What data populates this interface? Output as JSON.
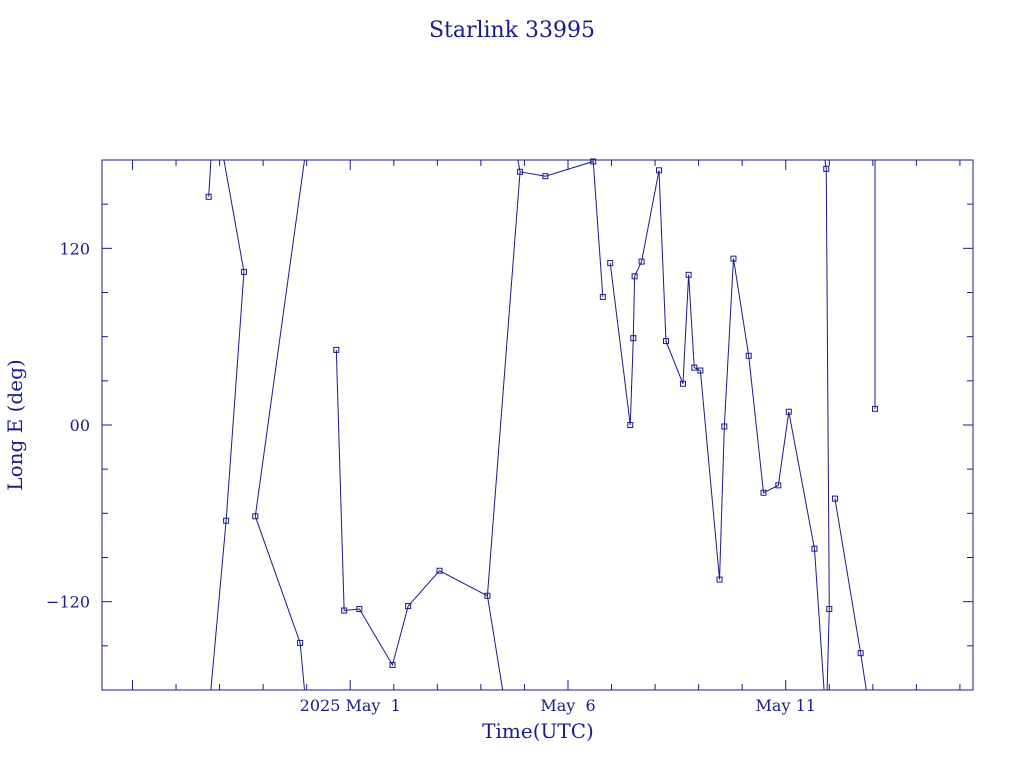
{
  "chart_data": {
    "type": "line",
    "title": "Starlink 33995",
    "xlabel": "Time(UTC)",
    "ylabel": "Long E (deg)",
    "x_unit": "days",
    "x_tick_values": [
      1.0,
      6.0,
      11.0
    ],
    "x_tick_labels": [
      "2025 May  1",
      "May  6",
      "May 11"
    ],
    "y_tick_values": [
      -120,
      0,
      120
    ],
    "y_tick_labels": [
      "−120",
      "00",
      "120"
    ],
    "xlim": [
      -4.7,
      15.3
    ],
    "ylim": [
      -180,
      180
    ],
    "grid": false,
    "color": "#1a1a8c",
    "series": [
      {
        "x": [
          -2.25,
          -1.85,
          -1.44,
          -1.18,
          -0.15,
          0.68,
          0.86,
          1.21,
          1.97,
          2.33,
          3.05,
          4.15,
          4.9,
          5.48,
          6.58,
          6.8,
          6.97,
          7.43,
          7.5,
          7.53,
          7.69,
          8.09,
          8.25,
          8.64,
          8.77,
          8.9,
          9.04,
          9.48,
          9.59,
          9.8,
          10.15,
          10.49,
          10.83,
          11.07,
          11.66,
          11.93,
          12.0,
          12.13,
          12.72,
          13.05
        ],
        "y": [
          155,
          -65,
          104,
          -62,
          -148,
          51,
          -126,
          -125,
          -163,
          -123,
          -99,
          -116,
          172,
          169,
          179,
          87,
          110,
          0,
          59,
          101,
          111,
          173,
          57,
          28,
          102,
          39,
          37,
          -105,
          -1,
          113,
          47,
          -46,
          -41,
          9,
          -84,
          174,
          -125,
          -50,
          -155,
          11
        ]
      }
    ],
    "wrap_segments": [
      [
        -2.25,
        -2.2
      ],
      [
        -1.44,
        -1.9
      ],
      [
        -0.15,
        -0.05
      ],
      [
        4.15,
        4.55
      ],
      [
        4.9,
        4.85
      ],
      [
        12.0,
        11.95
      ],
      [
        11.93,
        11.9
      ],
      [
        13.05,
        13.02
      ]
    ]
  }
}
